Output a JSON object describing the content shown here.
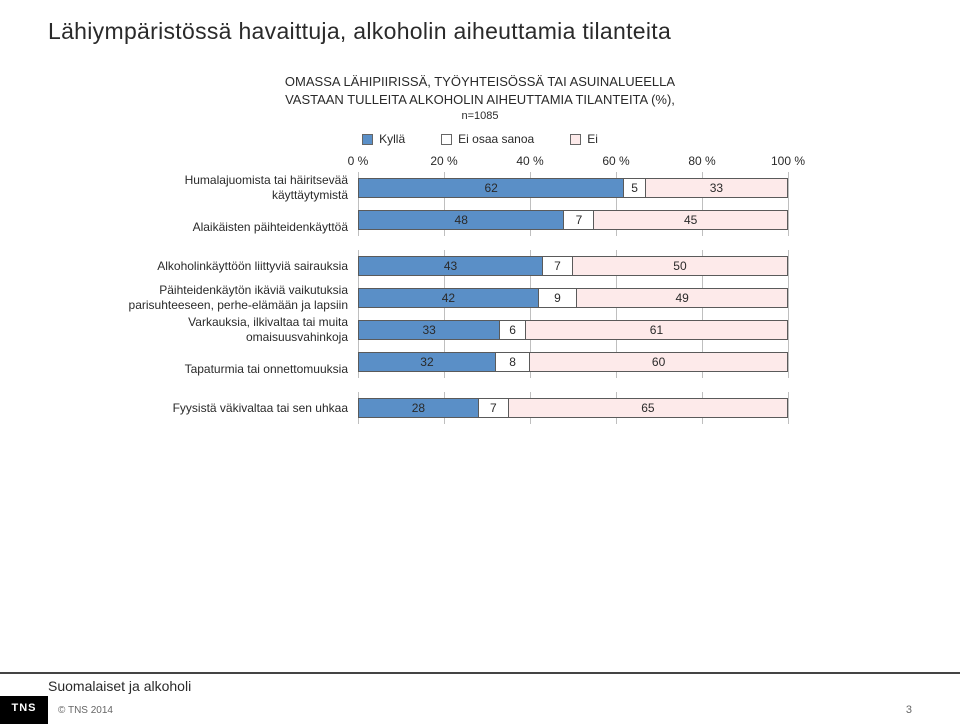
{
  "page_title": "Lähiympäristössä havaittuja, alkoholin aiheuttamia tilanteita",
  "header": {
    "line1": "OMASSA LÄHIPIIRISSÄ, TYÖYHTEISÖSSÄ TAI ASUINALUEELLA",
    "line2": "VASTAAN TULLEITA ALKOHOLIN AIHEUTTAMIA TILANTEITA (%),",
    "sub": "n=1085"
  },
  "legend": [
    {
      "label": "Kyllä",
      "color": "#5a8fc7"
    },
    {
      "label": "Ei osaa sanoa",
      "color": "#ffffff"
    },
    {
      "label": "Ei",
      "color": "#fdeaea"
    }
  ],
  "axis": {
    "ticks": [
      0,
      20,
      40,
      60,
      80,
      100
    ],
    "suffix": " %",
    "min": 0,
    "max": 100
  },
  "series_colors": [
    "#5a8fc7",
    "#ffffff",
    "#fdeaea"
  ],
  "rows": [
    {
      "label": "Humalajuomista tai häiritsevää\nkäyttäytymistä",
      "values": [
        62,
        5,
        33
      ],
      "gap_after": false
    },
    {
      "label": "Alaikäisten päihteidenkäyttöä",
      "values": [
        48,
        7,
        45
      ],
      "gap_after": true
    },
    {
      "label": "Alkoholinkäyttöön liittyviä sairauksia",
      "values": [
        43,
        7,
        50
      ],
      "gap_after": false
    },
    {
      "label": "Päihteidenkäytön ikäviä vaikutuksia\nparisuhteeseen, perhe-elämään ja lapsiin",
      "values": [
        42,
        9,
        49
      ],
      "gap_after": false
    },
    {
      "label": "Varkauksia, ilkivaltaa tai muita\nomaisuusvahinkoja",
      "values": [
        33,
        6,
        61
      ],
      "gap_after": false
    },
    {
      "label": "Tapaturmia tai onnettomuuksia",
      "values": [
        32,
        8,
        60
      ],
      "gap_after": true
    },
    {
      "label": "Fyysistä väkivaltaa tai sen uhkaa",
      "values": [
        28,
        7,
        65
      ],
      "gap_after": false
    }
  ],
  "footer": {
    "source": "Suomalaiset ja alkoholi",
    "logo": "TNS",
    "copyright": "© TNS 2014",
    "page": "3"
  },
  "grid_color": "#bfbfbf",
  "bar_border_color": "#5a5a5a"
}
